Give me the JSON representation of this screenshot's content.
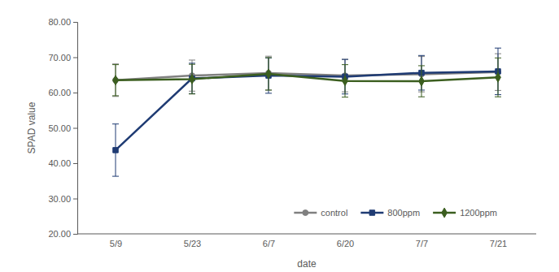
{
  "chart_data": {
    "type": "line",
    "x_label": "date",
    "y_label": "SPAD value",
    "categories": [
      "5/9",
      "5/23",
      "6/7",
      "6/20",
      "7/7",
      "7/21"
    ],
    "ylim": [
      20,
      80
    ],
    "yticks": [
      {
        "value": 20,
        "label": "20.00"
      },
      {
        "value": 30,
        "label": "30.00"
      },
      {
        "value": 40,
        "label": "40.00"
      },
      {
        "value": 50,
        "label": "50.00"
      },
      {
        "value": 60,
        "label": "60.00"
      },
      {
        "value": 70,
        "label": "70.00"
      },
      {
        "value": 80,
        "label": "80.00"
      }
    ],
    "grid": false,
    "legend": "lower right",
    "series": [
      {
        "name": "control",
        "color": "#808080",
        "marker": "circle",
        "values": [
          63.5,
          64.8,
          65.5,
          64.8,
          65.2,
          65.8
        ],
        "errors": [
          4.6,
          4.4,
          4.8,
          4.6,
          5.0,
          5.2
        ]
      },
      {
        "name": "800ppm",
        "color": "#1f3b73",
        "marker": "square",
        "values": [
          43.7,
          64.0,
          64.8,
          64.5,
          65.6,
          66.0
        ],
        "errors": [
          7.4,
          4.3,
          5.0,
          4.9,
          4.9,
          6.6
        ]
      },
      {
        "name": "1200ppm",
        "color": "#3b5e1f",
        "marker": "diamond",
        "values": [
          63.5,
          63.8,
          65.3,
          63.3,
          63.2,
          64.3
        ],
        "errors": [
          4.4,
          4.2,
          4.6,
          4.6,
          4.4,
          5.5
        ]
      }
    ]
  }
}
